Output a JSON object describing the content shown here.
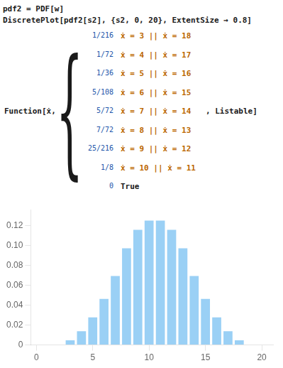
{
  "chart_data": {
    "type": "bar",
    "title": "pdf2 = PDF[w]",
    "subtitle": "DiscretePlot[pdf2[s2], {s2, 0, 20}, ExtentSize → 0.8]",
    "annotations": [
      "Function[ẋ,",
      "{",
      "1/216",
      "ẋ = 3 || ẋ = 18",
      "1/72",
      "ẋ = 4 || ẋ = 17",
      "1/36",
      "ẋ = 5 || ẋ = 16",
      "5/108",
      "ẋ = 6 || ẋ = 15",
      "5/72",
      "ẋ = 7 || ẋ = 14",
      "7/72",
      "ẋ = 8 || ẋ = 13",
      "25/216",
      "ẋ = 9 || ẋ = 12",
      "1/8",
      "ẋ = 10 || ẋ = 11",
      "0",
      "True",
      ", Listable]"
    ],
    "x": [
      0,
      1,
      2,
      3,
      4,
      5,
      6,
      7,
      8,
      9,
      10,
      11,
      12,
      13,
      14,
      15,
      16,
      17,
      18,
      19,
      20
    ],
    "values": [
      0,
      0,
      0,
      0.004629629629629629,
      0.013888888888888888,
      0.027777777777777776,
      0.046296296296296294,
      0.06944444444444443,
      0.09722222222222222,
      0.11574074074074074,
      0.125,
      0.125,
      0.11574074074074074,
      0.09722222222222222,
      0.06944444444444443,
      0.046296296296296294,
      0.027777777777777776,
      0.013888888888888888,
      0.004629629629629629,
      0,
      0
    ],
    "xlim": [
      -0.5,
      21.0
    ],
    "xticks": [
      0,
      5,
      10,
      15,
      20
    ],
    "ylim": [
      0,
      0.136
    ],
    "yticks": [
      0,
      0.02,
      0.04,
      0.06,
      0.08,
      {
        "value": 0.1,
        "label": "0.10"
      },
      0.12
    ],
    "grid": false
  }
}
